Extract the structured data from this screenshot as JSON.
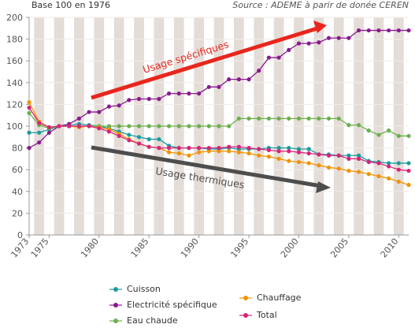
{
  "header": {
    "left": "Base 100 en 1976",
    "right": "Source : ADEME à parir de donée CEREN"
  },
  "annotations": {
    "usage_specifiques": "Usage spécifiques",
    "usage_thermiques": "Usage thermiques"
  },
  "colors": {
    "bands": "#e4dcd7",
    "grid": "#f0ece9",
    "axis": "#999999",
    "red_arrow": "#e8261d",
    "gray_arrow": "#4d4d4d"
  },
  "chart_data": {
    "type": "line",
    "title": "",
    "xlabel": "",
    "ylabel": "",
    "xlim": [
      1973,
      2011
    ],
    "ylim": [
      0,
      200
    ],
    "x_ticks": [
      1973,
      1975,
      1980,
      1985,
      1990,
      1995,
      2000,
      2005,
      2010
    ],
    "y_ticks": [
      0,
      20,
      40,
      60,
      80,
      100,
      120,
      140,
      160,
      180,
      200
    ],
    "grid": true,
    "legend_placement": "bottom",
    "x": [
      1973,
      1974,
      1975,
      1976,
      1977,
      1978,
      1979,
      1980,
      1981,
      1982,
      1983,
      1984,
      1985,
      1986,
      1987,
      1988,
      1989,
      1990,
      1991,
      1992,
      1993,
      1994,
      1995,
      1996,
      1997,
      1998,
      1999,
      2000,
      2001,
      2002,
      2003,
      2004,
      2005,
      2006,
      2007,
      2008,
      2009,
      2010,
      2011
    ],
    "series": [
      {
        "name": "Cuisson",
        "color": "#1a9c9c",
        "values": [
          94,
          94,
          97,
          100,
          101,
          102,
          101,
          100,
          98,
          95,
          92,
          90,
          88,
          88,
          82,
          80,
          80,
          80,
          79,
          79,
          80,
          79,
          79,
          79,
          80,
          80,
          80,
          79,
          79,
          74,
          74,
          73,
          73,
          73,
          68,
          67,
          66,
          66,
          66
        ]
      },
      {
        "name": "Electricité spécifique",
        "color": "#8a1a8f",
        "values": [
          80,
          85,
          94,
          100,
          102,
          107,
          113,
          113,
          118,
          119,
          124,
          125,
          125,
          125,
          130,
          130,
          130,
          130,
          136,
          136,
          143,
          143,
          143,
          151,
          163,
          163,
          170,
          176,
          176,
          177,
          181,
          181,
          181,
          188,
          188,
          188,
          188,
          188,
          188
        ]
      },
      {
        "name": "Eau chaude",
        "color": "#6ab04c",
        "values": [
          112,
          101,
          98,
          100,
          100,
          100,
          100,
          100,
          100,
          100,
          100,
          100,
          100,
          100,
          100,
          100,
          100,
          100,
          100,
          100,
          100,
          107,
          107,
          107,
          107,
          107,
          107,
          107,
          107,
          107,
          107,
          107,
          101,
          101,
          96,
          92,
          96,
          91,
          91
        ]
      },
      {
        "name": "Chauffage",
        "color": "#f39200",
        "values": [
          122,
          104,
          99,
          100,
          100,
          99,
          100,
          99,
          97,
          93,
          88,
          84,
          81,
          80,
          76,
          75,
          73,
          76,
          77,
          77,
          77,
          76,
          75,
          73,
          72,
          70,
          68,
          67,
          66,
          64,
          62,
          61,
          59,
          58,
          56,
          54,
          52,
          49,
          46
        ]
      },
      {
        "name": "Total",
        "color": "#d8237a",
        "values": [
          117,
          103,
          99,
          100,
          100,
          100,
          100,
          98,
          95,
          91,
          87,
          84,
          81,
          80,
          80,
          80,
          80,
          80,
          80,
          80,
          81,
          81,
          80,
          79,
          78,
          77,
          77,
          76,
          75,
          74,
          73,
          73,
          70,
          70,
          67,
          66,
          63,
          60,
          59
        ]
      }
    ]
  },
  "legend": {
    "cuisson": "Cuisson",
    "electricite": "Electricité spécifique",
    "eau": "Eau chaude",
    "chauffage": "Chauffage",
    "total": "Total"
  }
}
